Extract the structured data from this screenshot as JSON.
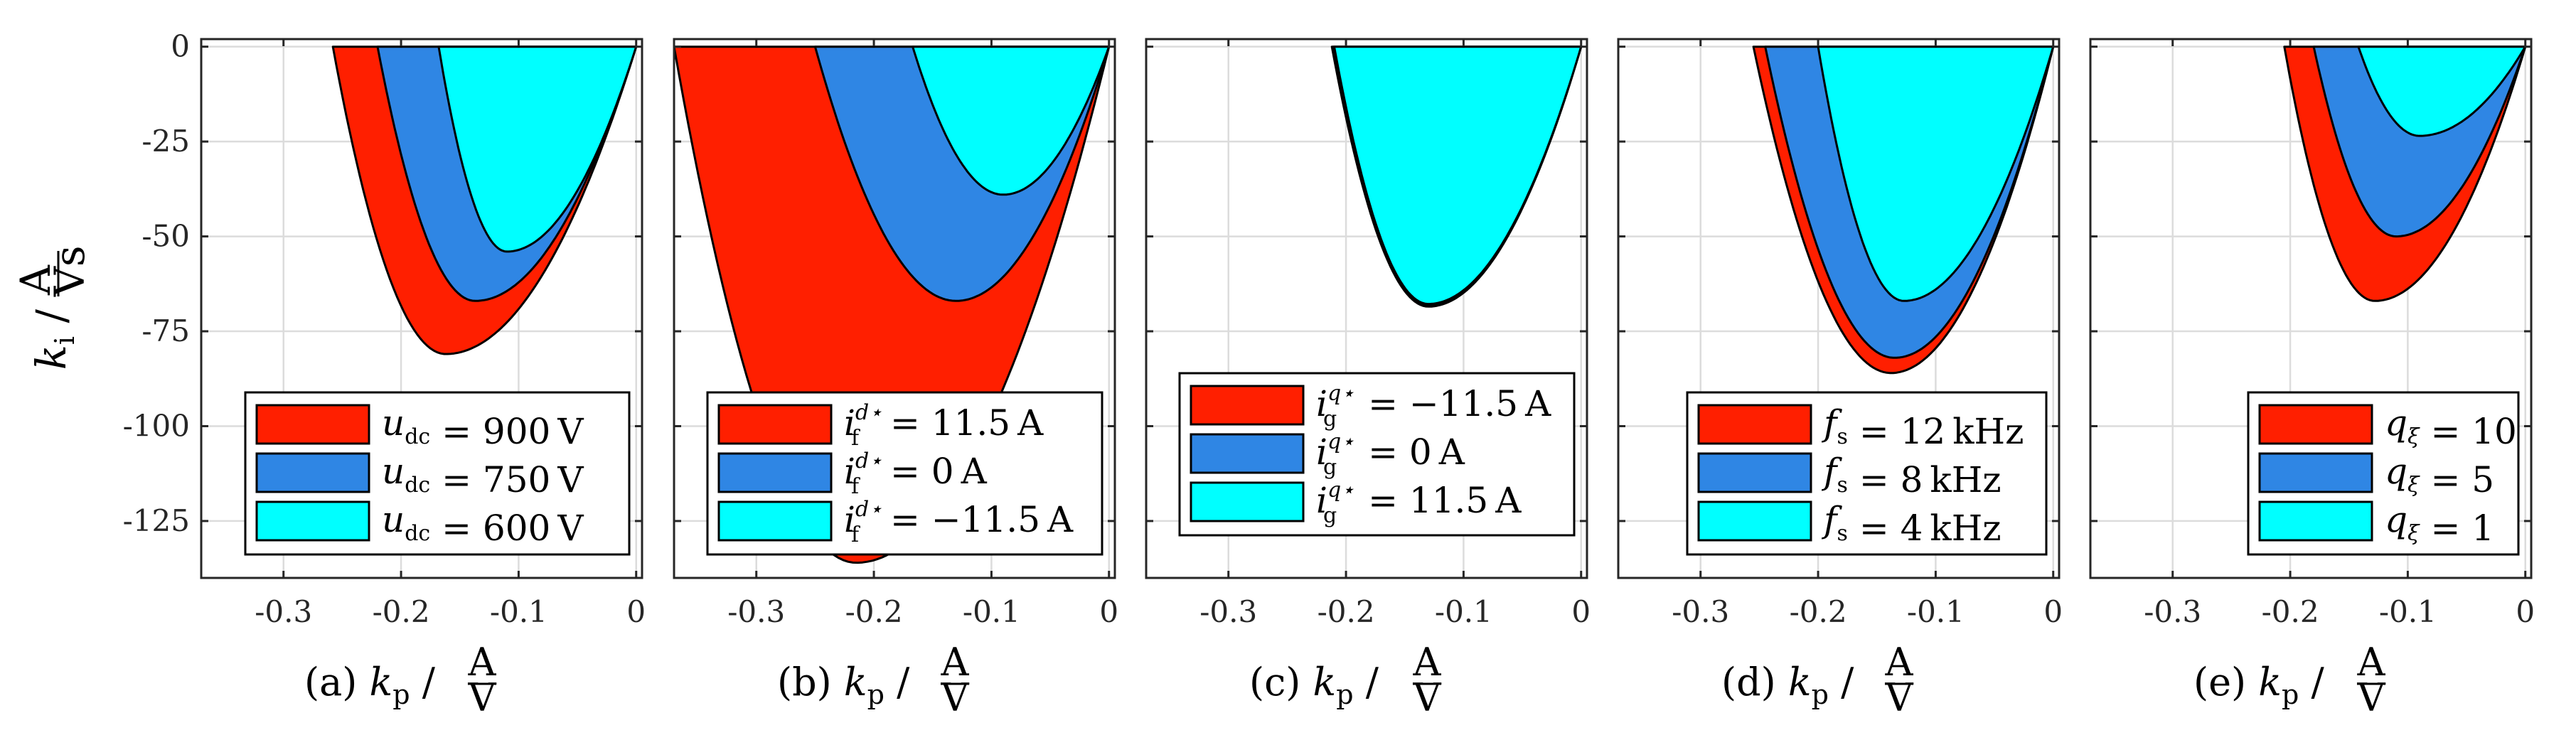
{
  "figure": {
    "ylabel": {
      "symbol": "k",
      "sub": "i",
      "sep": "/",
      "unit_num": "A",
      "unit_den": "Vs"
    }
  },
  "colors": {
    "red": "#ff1f00",
    "blue": "#2f86e4",
    "cyan": "#00ffff",
    "grid": "#dcdcdc",
    "axis": "#262626"
  },
  "chart_data": [
    {
      "type": "area",
      "panel": "(a)",
      "xlabel": {
        "prefix": "(a)",
        "symbol": "k",
        "sub": "p",
        "sep": "/",
        "unit_num": "A",
        "unit_den": "V"
      },
      "xlim": [
        -0.37,
        0.005
      ],
      "ylim": [
        -140,
        2
      ],
      "xticks": [
        -0.3,
        -0.2,
        -0.1,
        0
      ],
      "xtick_labels": [
        "-0.3",
        "-0.2",
        "-0.1",
        "0"
      ],
      "yticks": [
        0,
        -25,
        -50,
        -75,
        -100,
        -125
      ],
      "ytick_labels": [
        "0",
        "-25",
        "-50",
        "-75",
        "-100",
        "-125"
      ],
      "grid": true,
      "legend_position": "bottom-right",
      "series": [
        {
          "label": "u_dc = 900 V",
          "legend_math": {
            "var": "u",
            "sub": "dc",
            "rel": "=",
            "value": "900",
            "unit": "V"
          },
          "color": "red",
          "x_left": -0.258,
          "x_right": 0,
          "vertex_x": -0.162,
          "vertex_y": -81
        },
        {
          "label": "u_dc = 750 V",
          "legend_math": {
            "var": "u",
            "sub": "dc",
            "rel": "=",
            "value": "750",
            "unit": "V"
          },
          "color": "blue",
          "x_left": -0.22,
          "x_right": 0,
          "vertex_x": -0.137,
          "vertex_y": -67
        },
        {
          "label": "u_dc = 600 V",
          "legend_math": {
            "var": "u",
            "sub": "dc",
            "rel": "=",
            "value": "600",
            "unit": "V"
          },
          "color": "cyan",
          "x_left": -0.168,
          "x_right": 0,
          "vertex_x": -0.11,
          "vertex_y": -54
        }
      ]
    },
    {
      "type": "area",
      "panel": "(b)",
      "xlabel": {
        "prefix": "(b)",
        "symbol": "k",
        "sub": "p",
        "sep": "/",
        "unit_num": "A",
        "unit_den": "V"
      },
      "xlim": [
        -0.37,
        0.005
      ],
      "ylim": [
        -140,
        2
      ],
      "xticks": [
        -0.3,
        -0.2,
        -0.1,
        0
      ],
      "xtick_labels": [
        "-0.3",
        "-0.2",
        "-0.1",
        "0"
      ],
      "grid": true,
      "legend_position": "bottom-right",
      "series": [
        {
          "label": "i_f^{d*} = 11.5 A",
          "legend_math": {
            "var": "i",
            "sub": "f",
            "sup": "d⋆",
            "rel": "=",
            "value": "11.5",
            "unit": "A"
          },
          "color": "red",
          "x_left": -0.37,
          "x_right": 0,
          "vertex_x": -0.215,
          "vertex_y": -136
        },
        {
          "label": "i_f^{d*} = 0 A",
          "legend_math": {
            "var": "i",
            "sub": "f",
            "sup": "d⋆",
            "rel": "=",
            "value": "0",
            "unit": "A"
          },
          "color": "blue",
          "x_left": -0.25,
          "x_right": 0,
          "vertex_x": -0.13,
          "vertex_y": -67
        },
        {
          "label": "i_f^{d*} = -11.5 A",
          "legend_math": {
            "var": "i",
            "sub": "f",
            "sup": "d⋆",
            "rel": "=",
            "value": "−11.5",
            "unit": "A"
          },
          "color": "cyan",
          "x_left": -0.167,
          "x_right": 0,
          "vertex_x": -0.09,
          "vertex_y": -39
        }
      ]
    },
    {
      "type": "area",
      "panel": "(c)",
      "xlabel": {
        "prefix": "(c)",
        "symbol": "k",
        "sub": "p",
        "sep": "/",
        "unit_num": "A",
        "unit_den": "V"
      },
      "xlim": [
        -0.37,
        0.005
      ],
      "ylim": [
        -140,
        2
      ],
      "xticks": [
        -0.3,
        -0.2,
        -0.1,
        0
      ],
      "xtick_labels": [
        "-0.3",
        "-0.2",
        "-0.1",
        "0"
      ],
      "grid": true,
      "legend_position": "top-right",
      "series": [
        {
          "label": "i_g^{q*} = -11.5 A",
          "legend_math": {
            "var": "i",
            "sub": "g",
            "sup": "q⋆",
            "rel": "=",
            "value": "−11.5",
            "unit": "A"
          },
          "color": "red",
          "x_left": -0.212,
          "x_right": 0,
          "vertex_x": -0.13,
          "vertex_y": -68.5
        },
        {
          "label": "i_g^{q*} = 0 A",
          "legend_math": {
            "var": "i",
            "sub": "g",
            "sup": "q⋆",
            "rel": "=",
            "value": "0",
            "unit": "A"
          },
          "color": "blue",
          "x_left": -0.211,
          "x_right": 0,
          "vertex_x": -0.13,
          "vertex_y": -68.2
        },
        {
          "label": "i_g^{q*} = 11.5 A",
          "legend_math": {
            "var": "i",
            "sub": "g",
            "sup": "q⋆",
            "rel": "=",
            "value": "11.5",
            "unit": "A"
          },
          "color": "cyan",
          "x_left": -0.21,
          "x_right": 0,
          "vertex_x": -0.13,
          "vertex_y": -67.8
        }
      ]
    },
    {
      "type": "area",
      "panel": "(d)",
      "xlabel": {
        "prefix": "(d)",
        "symbol": "k",
        "sub": "p",
        "sep": "/",
        "unit_num": "A",
        "unit_den": "V"
      },
      "xlim": [
        -0.37,
        0.005
      ],
      "ylim": [
        -140,
        2
      ],
      "xticks": [
        -0.3,
        -0.2,
        -0.1,
        0
      ],
      "xtick_labels": [
        "-0.3",
        "-0.2",
        "-0.1",
        "0"
      ],
      "grid": true,
      "legend_position": "bottom-right",
      "series": [
        {
          "label": "f_s = 12 kHz",
          "legend_math": {
            "var": "f",
            "sub": "s",
            "rel": "=",
            "value": "12",
            "unit": "kHz"
          },
          "color": "red",
          "x_left": -0.255,
          "x_right": 0,
          "vertex_x": -0.138,
          "vertex_y": -86
        },
        {
          "label": "f_s = 8 kHz",
          "legend_math": {
            "var": "f",
            "sub": "s",
            "rel": "=",
            "value": "8",
            "unit": "kHz"
          },
          "color": "blue",
          "x_left": -0.245,
          "x_right": 0,
          "vertex_x": -0.135,
          "vertex_y": -82
        },
        {
          "label": "f_s = 4 kHz",
          "legend_math": {
            "var": "f",
            "sub": "s",
            "rel": "=",
            "value": "4",
            "unit": "kHz"
          },
          "color": "cyan",
          "x_left": -0.2,
          "x_right": 0,
          "vertex_x": -0.127,
          "vertex_y": -67
        }
      ]
    },
    {
      "type": "area",
      "panel": "(e)",
      "xlabel": {
        "prefix": "(e)",
        "symbol": "k",
        "sub": "p",
        "sep": "/",
        "unit_num": "A",
        "unit_den": "V"
      },
      "xlim": [
        -0.37,
        0.005
      ],
      "ylim": [
        -140,
        2
      ],
      "xticks": [
        -0.3,
        -0.2,
        -0.1,
        0
      ],
      "xtick_labels": [
        "-0.3",
        "-0.2",
        "-0.1",
        "0"
      ],
      "grid": true,
      "legend_position": "bottom-right",
      "series": [
        {
          "label": "q_xi = 10",
          "legend_math": {
            "var": "q",
            "sub": "ξ",
            "rel": "=",
            "value": "10",
            "unit": ""
          },
          "color": "red",
          "x_left": -0.205,
          "x_right": 0,
          "vertex_x": -0.128,
          "vertex_y": -67
        },
        {
          "label": "q_xi = 5",
          "legend_math": {
            "var": "q",
            "sub": "ξ",
            "rel": "=",
            "value": "5",
            "unit": ""
          },
          "color": "blue",
          "x_left": -0.18,
          "x_right": 0,
          "vertex_x": -0.11,
          "vertex_y": -50
        },
        {
          "label": "q_xi = 1",
          "legend_math": {
            "var": "q",
            "sub": "ξ",
            "rel": "=",
            "value": "1",
            "unit": ""
          },
          "color": "cyan",
          "x_left": -0.142,
          "x_right": 0,
          "vertex_x": -0.09,
          "vertex_y": -23.5
        }
      ]
    }
  ]
}
